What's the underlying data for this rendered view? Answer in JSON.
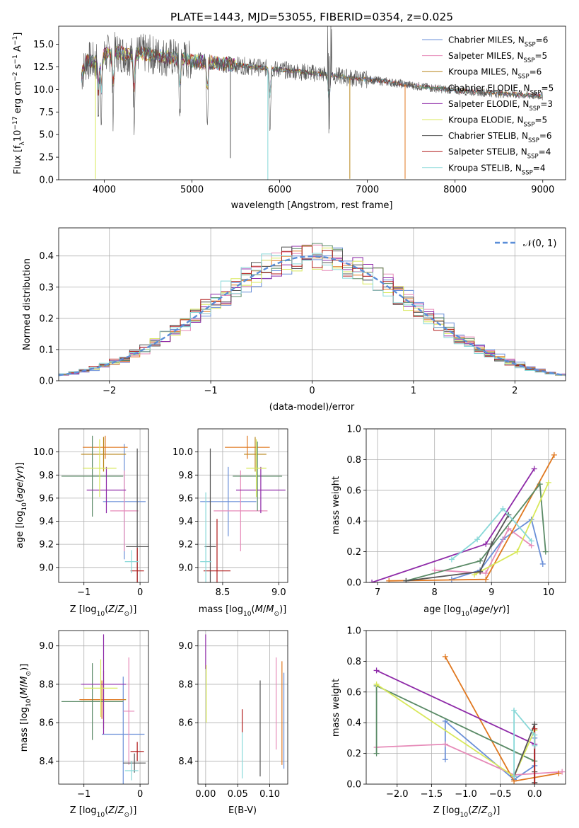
{
  "figure_title": "PLATE=1443, MJD=53055, FIBERID=0354, z=0.025",
  "colors": {
    "Chabrier MILES": "#6a8fd8",
    "Salpeter MILES": "#e68ab8",
    "Kroupa MILES": "#b8861a",
    "Chabrier ELODIE": "#5a8a66",
    "Salpeter ELODIE": "#8e2aa8",
    "Kroupa ELODIE": "#d8e85a",
    "Chabrier STELIB": "#555555",
    "Salpeter STELIB": "#b01a1a",
    "Kroupa STELIB": "#88d8d8",
    "orange": "#e07820"
  },
  "chart_data": [
    {
      "id": "spectrum",
      "type": "line",
      "title": "PLATE=1443, MJD=53055, FIBERID=0354, z=0.025",
      "xlabel": "wavelength [Angstrom, rest frame]",
      "ylabel": "Flux [f_λ 10^-17 erg cm^-2 s^-1 A^-1]",
      "xlim": [
        3480,
        9260
      ],
      "ylim": [
        0,
        17
      ],
      "xticks": [
        4000,
        5000,
        6000,
        7000,
        8000,
        9000
      ],
      "yticks": [
        0.0,
        2.5,
        5.0,
        7.5,
        10.0,
        12.5,
        15.0
      ],
      "grid": false,
      "legend_position": "top-right",
      "legend": [
        {
          "label": "Chabrier MILES, N_SSP=6",
          "base": "Chabrier MILES, N",
          "sub": "SSP",
          "tail": "=6"
        },
        {
          "label": "Salpeter MILES, N_SSP=5",
          "base": "Salpeter MILES, N",
          "sub": "SSP",
          "tail": "=5"
        },
        {
          "label": "Kroupa MILES, N_SSP=6",
          "base": "Kroupa MILES, N",
          "sub": "SSP",
          "tail": "=6"
        },
        {
          "label": "Chabrier ELODIE, N_SSP=5",
          "base": "Chabrier ELODIE, N",
          "sub": "SSP",
          "tail": "=5"
        },
        {
          "label": "Salpeter ELODIE, N_SSP=3",
          "base": "Salpeter ELODIE, N",
          "sub": "SSP",
          "tail": "=3"
        },
        {
          "label": "Kroupa ELODIE, N_SSP=5",
          "base": "Kroupa ELODIE, N",
          "sub": "SSP",
          "tail": "=5"
        },
        {
          "label": "Chabrier STELIB, N_SSP=6",
          "base": "Chabrier STELIB, N",
          "sub": "SSP",
          "tail": "=6"
        },
        {
          "label": "Salpeter STELIB, N_SSP=4",
          "base": "Salpeter STELIB, N",
          "sub": "SSP",
          "tail": "=4"
        },
        {
          "label": "Kroupa STELIB, N_SSP=4",
          "base": "Kroupa STELIB, N",
          "sub": "SSP",
          "tail": "=4"
        }
      ],
      "continuum": [
        [
          3740,
          11.5
        ],
        [
          3800,
          13.2
        ],
        [
          3900,
          13.0
        ],
        [
          4000,
          13.8
        ],
        [
          4100,
          14.2
        ],
        [
          4200,
          14.0
        ],
        [
          4300,
          13.7
        ],
        [
          4400,
          14.0
        ],
        [
          4500,
          13.9
        ],
        [
          4700,
          13.6
        ],
        [
          5000,
          13.2
        ],
        [
          5300,
          12.9
        ],
        [
          5600,
          12.6
        ],
        [
          5900,
          12.3
        ],
        [
          6200,
          12.0
        ],
        [
          6500,
          11.7
        ],
        [
          6800,
          11.3
        ],
        [
          7100,
          11.0
        ],
        [
          7400,
          10.6
        ],
        [
          7700,
          10.2
        ],
        [
          8000,
          9.9
        ],
        [
          8300,
          9.7
        ],
        [
          8600,
          9.5
        ],
        [
          8900,
          9.3
        ],
        [
          9000,
          9.3
        ]
      ],
      "absorption_lines": [
        [
          3933,
          5.5
        ],
        [
          3968,
          6.0
        ],
        [
          4101,
          9.5
        ],
        [
          4340,
          10.5
        ],
        [
          4861,
          11.0
        ],
        [
          5175,
          11.2
        ],
        [
          5890,
          10.8
        ],
        [
          6563,
          12.5
        ]
      ],
      "spikes": [
        [
          3900,
          0.1
        ],
        [
          5438,
          2.4
        ],
        [
          5865,
          0.0
        ],
        [
          6800,
          0.1
        ],
        [
          7430,
          0.1
        ]
      ]
    },
    {
      "id": "residuals",
      "type": "histogram",
      "xlabel": "(data-model)/error",
      "ylabel": "Normed distribution",
      "xlim": [
        -2.5,
        2.5
      ],
      "ylim": [
        0,
        0.49
      ],
      "xticks": [
        -2,
        -1,
        0,
        1,
        2
      ],
      "yticks": [
        0.0,
        0.1,
        0.2,
        0.3,
        0.4
      ],
      "grid": true,
      "legend_position": "top-right",
      "legend": [
        {
          "label": "𝒩(0, 1)"
        }
      ],
      "reference_curve": "normal(0,1)"
    },
    {
      "id": "age_vs_Z",
      "type": "errorbar",
      "xlabel": "Z [log10(Z/Z⊙)]",
      "ylabel": "age [log10(age/yr)]",
      "xlim": [
        -1.45,
        0.15
      ],
      "ylim": [
        8.87,
        10.2
      ],
      "xticks": [
        -1,
        0
      ],
      "yticks": [
        9.0,
        9.2,
        9.4,
        9.6,
        9.8,
        10.0
      ],
      "grid": true,
      "points": [
        {
          "color_key": "Chabrier MILES",
          "x": -0.28,
          "xerr": 0.38,
          "y": 9.57,
          "yerr": 0.5
        },
        {
          "color_key": "Salpeter MILES",
          "x": -0.28,
          "xerr": 0.25,
          "y": 9.49,
          "yerr": 0.35
        },
        {
          "color_key": "Kroupa MILES",
          "x": -0.65,
          "xerr": 0.4,
          "y": 9.98,
          "yerr": 0.15
        },
        {
          "color_key": "orange",
          "x": -0.62,
          "xerr": 0.4,
          "y": 10.04,
          "yerr": 0.1
        },
        {
          "color_key": "Chabrier ELODIE",
          "x": -0.85,
          "xerr": 0.55,
          "y": 9.79,
          "yerr": 0.35
        },
        {
          "color_key": "Salpeter ELODIE",
          "x": -0.6,
          "xerr": 0.35,
          "y": 9.67,
          "yerr": 0.2
        },
        {
          "color_key": "Kroupa ELODIE",
          "x": -0.72,
          "xerr": 0.3,
          "y": 9.86,
          "yerr": 0.25
        },
        {
          "color_key": "Chabrier STELIB",
          "x": -0.05,
          "xerr": 0.2,
          "y": 9.18,
          "yerr": 0.85
        },
        {
          "color_key": "Salpeter STELIB",
          "x": -0.05,
          "xerr": 0.12,
          "y": 8.97,
          "yerr": 0.2
        },
        {
          "color_key": "Kroupa STELIB",
          "x": -0.15,
          "xerr": 0.12,
          "y": 9.05,
          "yerr": 0.1
        }
      ]
    },
    {
      "id": "age_vs_mass",
      "type": "errorbar",
      "xlabel": "mass [log10(M/M⊙)]",
      "ylabel": "",
      "xlim": [
        8.28,
        9.08
      ],
      "ylim": [
        8.87,
        10.2
      ],
      "xticks": [
        8.5,
        9.0
      ],
      "yticks": [
        9.0,
        9.2,
        9.4,
        9.6,
        9.8,
        10.0
      ],
      "grid": true,
      "points": [
        {
          "color_key": "Chabrier MILES",
          "x": 8.55,
          "xerr": 0.25,
          "y": 9.57,
          "yerr": 0.3
        },
        {
          "color_key": "Salpeter MILES",
          "x": 8.66,
          "xerr": 0.24,
          "y": 9.49,
          "yerr": 0.35
        },
        {
          "color_key": "Kroupa MILES",
          "x": 8.79,
          "xerr": 0.1,
          "y": 9.98,
          "yerr": 0.15
        },
        {
          "color_key": "orange",
          "x": 8.72,
          "xerr": 0.2,
          "y": 10.04,
          "yerr": 0.1
        },
        {
          "color_key": "Chabrier ELODIE",
          "x": 8.81,
          "xerr": 0.22,
          "y": 9.79,
          "yerr": 0.3
        },
        {
          "color_key": "Salpeter ELODIE",
          "x": 8.84,
          "xerr": 0.22,
          "y": 9.67,
          "yerr": 0.2
        },
        {
          "color_key": "Kroupa ELODIE",
          "x": 8.8,
          "xerr": 0.09,
          "y": 9.86,
          "yerr": 0.25
        },
        {
          "color_key": "Chabrier STELIB",
          "x": 8.39,
          "xerr": 0.05,
          "y": 9.18,
          "yerr": 0.85
        },
        {
          "color_key": "Salpeter STELIB",
          "x": 8.45,
          "xerr": 0.12,
          "y": 8.97,
          "yerr": 0.45
        },
        {
          "color_key": "Kroupa STELIB",
          "x": 8.35,
          "xerr": 0.05,
          "y": 9.05,
          "yerr": 0.6
        }
      ]
    },
    {
      "id": "weight_vs_age",
      "type": "line",
      "xlabel": "age [log10(age/yr)]",
      "ylabel": "mass weight",
      "xlim": [
        6.8,
        10.3
      ],
      "ylim": [
        0,
        1
      ],
      "xticks": [
        7,
        8,
        9,
        10
      ],
      "yticks": [
        0.0,
        0.2,
        0.4,
        0.6,
        0.8,
        1.0
      ],
      "grid": true,
      "series": [
        {
          "color_key": "Chabrier MILES",
          "x": [
            8.3,
            8.8,
            9.2,
            9.7,
            9.9
          ],
          "y": [
            0.02,
            0.08,
            0.28,
            0.41,
            0.12
          ]
        },
        {
          "color_key": "Salpeter MILES",
          "x": [
            8.0,
            8.9,
            9.3,
            9.7
          ],
          "y": [
            0.08,
            0.06,
            0.35,
            0.24
          ]
        },
        {
          "color_key": "orange",
          "x": [
            7.2,
            8.9,
            10.1
          ],
          "y": [
            0.01,
            0.02,
            0.83
          ]
        },
        {
          "color_key": "Chabrier ELODIE",
          "x": [
            7.5,
            8.8,
            9.85,
            9.95
          ],
          "y": [
            0.01,
            0.14,
            0.64,
            0.2
          ]
        },
        {
          "color_key": "Salpeter ELODIE",
          "x": [
            6.9,
            8.9,
            9.75
          ],
          "y": [
            0.0,
            0.25,
            0.74
          ]
        },
        {
          "color_key": "Kroupa ELODIE",
          "x": [
            8.7,
            9.45,
            10.0
          ],
          "y": [
            0.05,
            0.2,
            0.65
          ]
        },
        {
          "color_key": "Chabrier STELIB",
          "x": [
            7.5,
            8.8,
            9.0,
            9.3
          ],
          "y": [
            0.01,
            0.07,
            0.25,
            0.44
          ]
        },
        {
          "color_key": "Kroupa STELIB",
          "x": [
            8.3,
            8.75,
            9.2,
            9.7
          ],
          "y": [
            0.15,
            0.28,
            0.48,
            0.27
          ]
        }
      ]
    },
    {
      "id": "mass_vs_Z",
      "type": "errorbar",
      "xlabel": "Z [log10(Z/Z⊙)]",
      "ylabel": "mass [log10(M/M⊙)]",
      "xlim": [
        -1.45,
        0.15
      ],
      "ylim": [
        8.28,
        9.08
      ],
      "xticks": [
        -1,
        0
      ],
      "yticks": [
        8.4,
        8.6,
        8.8,
        9.0
      ],
      "grid": true,
      "points": [
        {
          "color_key": "Chabrier MILES",
          "x": -0.3,
          "xerr": 0.38,
          "y": 8.54,
          "yerr": 0.3
        },
        {
          "color_key": "Salpeter MILES",
          "x": -0.2,
          "xerr": 0.1,
          "y": 8.66,
          "yerr": 0.28
        },
        {
          "color_key": "Kroupa MILES",
          "x": -0.65,
          "xerr": 0.4,
          "y": 8.72,
          "yerr": 0.15
        },
        {
          "color_key": "orange",
          "x": -0.68,
          "xerr": 0.4,
          "y": 8.72,
          "yerr": 0.1
        },
        {
          "color_key": "Chabrier ELODIE",
          "x": -0.85,
          "xerr": 0.55,
          "y": 8.71,
          "yerr": 0.2
        },
        {
          "color_key": "Salpeter ELODIE",
          "x": -0.65,
          "xerr": 0.4,
          "y": 8.8,
          "yerr": 0.26
        },
        {
          "color_key": "Kroupa ELODIE",
          "x": -0.7,
          "xerr": 0.3,
          "y": 8.78,
          "yerr": 0.15
        },
        {
          "color_key": "Chabrier STELIB",
          "x": -0.1,
          "xerr": 0.2,
          "y": 8.39,
          "yerr": 0.05
        },
        {
          "color_key": "Salpeter STELIB",
          "x": -0.05,
          "xerr": 0.12,
          "y": 8.45,
          "yerr": 0.05
        },
        {
          "color_key": "Kroupa STELIB",
          "x": -0.15,
          "xerr": 0.12,
          "y": 8.35,
          "yerr": 0.05
        }
      ]
    },
    {
      "id": "mass_vs_EBV",
      "type": "errorbar",
      "xlabel": "E(B-V)",
      "ylabel": "",
      "xlim": [
        -0.012,
        0.128
      ],
      "ylim": [
        8.28,
        9.08
      ],
      "xticks": [
        0.0,
        0.05,
        0.1
      ],
      "yticks": [
        8.4,
        8.6,
        8.8,
        9.0
      ],
      "grid": true,
      "points": [
        {
          "color_key": "Salpeter ELODIE",
          "x": 0.0,
          "xerr": 0,
          "y": 8.97,
          "yerr": 0.09
        },
        {
          "color_key": "Kroupa ELODIE",
          "x": 0.001,
          "xerr": 0,
          "y": 8.75,
          "yerr": 0.15
        },
        {
          "color_key": "Salpeter STELIB",
          "x": 0.057,
          "xerr": 0,
          "y": 8.61,
          "yerr": 0.06
        },
        {
          "color_key": "Kroupa STELIB",
          "x": 0.057,
          "xerr": 0,
          "y": 8.43,
          "yerr": 0.12
        },
        {
          "color_key": "Chabrier STELIB",
          "x": 0.085,
          "xerr": 0,
          "y": 8.57,
          "yerr": 0.25
        },
        {
          "color_key": "Salpeter MILES",
          "x": 0.11,
          "xerr": 0,
          "y": 8.7,
          "yerr": 0.24
        },
        {
          "color_key": "orange",
          "x": 0.119,
          "xerr": 0,
          "y": 8.65,
          "yerr": 0.27
        },
        {
          "color_key": "Chabrier MILES",
          "x": 0.122,
          "xerr": 0,
          "y": 8.61,
          "yerr": 0.25
        }
      ]
    },
    {
      "id": "weight_vs_Z",
      "type": "line",
      "xlabel": "Z [log10(Z/Z⊙)]",
      "ylabel": "mass weight",
      "xlim": [
        -2.45,
        0.45
      ],
      "ylim": [
        0,
        1
      ],
      "xticks": [
        -2.0,
        -1.5,
        -1.0,
        -0.5,
        0.0
      ],
      "yticks": [
        0.0,
        0.2,
        0.4,
        0.6,
        0.8,
        1.0
      ],
      "grid": true,
      "series": [
        {
          "color_key": "Chabrier MILES",
          "x": [
            -1.3,
            -1.3,
            -0.3,
            0.0,
            0.0
          ],
          "y": [
            0.16,
            0.41,
            0.03,
            0.12,
            0.3
          ]
        },
        {
          "color_key": "Salpeter MILES",
          "x": [
            -2.3,
            -1.3,
            -0.3,
            0.4
          ],
          "y": [
            0.24,
            0.26,
            0.06,
            0.08
          ]
        },
        {
          "color_key": "orange",
          "x": [
            -1.3,
            -0.3,
            0.35
          ],
          "y": [
            0.83,
            0.02,
            0.07
          ]
        },
        {
          "color_key": "Chabrier ELODIE",
          "x": [
            -2.3,
            -2.3,
            0.0
          ],
          "y": [
            0.2,
            0.64,
            0.15
          ]
        },
        {
          "color_key": "Salpeter ELODIE",
          "x": [
            -2.3,
            0.0
          ],
          "y": [
            0.74,
            0.26
          ]
        },
        {
          "color_key": "Kroupa ELODIE",
          "x": [
            -2.3,
            -0.3,
            0.0
          ],
          "y": [
            0.65,
            0.05,
            0.35
          ]
        },
        {
          "color_key": "Chabrier STELIB",
          "x": [
            -0.3,
            0.0,
            0.0,
            0.0
          ],
          "y": [
            0.05,
            0.39,
            0.08,
            0.01
          ]
        },
        {
          "color_key": "Salpeter STELIB",
          "x": [
            0.0,
            0.0
          ],
          "y": [
            0.0,
            0.36
          ]
        },
        {
          "color_key": "Kroupa STELIB",
          "x": [
            -0.3,
            -0.3,
            0.0,
            0.0
          ],
          "y": [
            0.05,
            0.48,
            0.32,
            0.25
          ]
        }
      ]
    }
  ]
}
